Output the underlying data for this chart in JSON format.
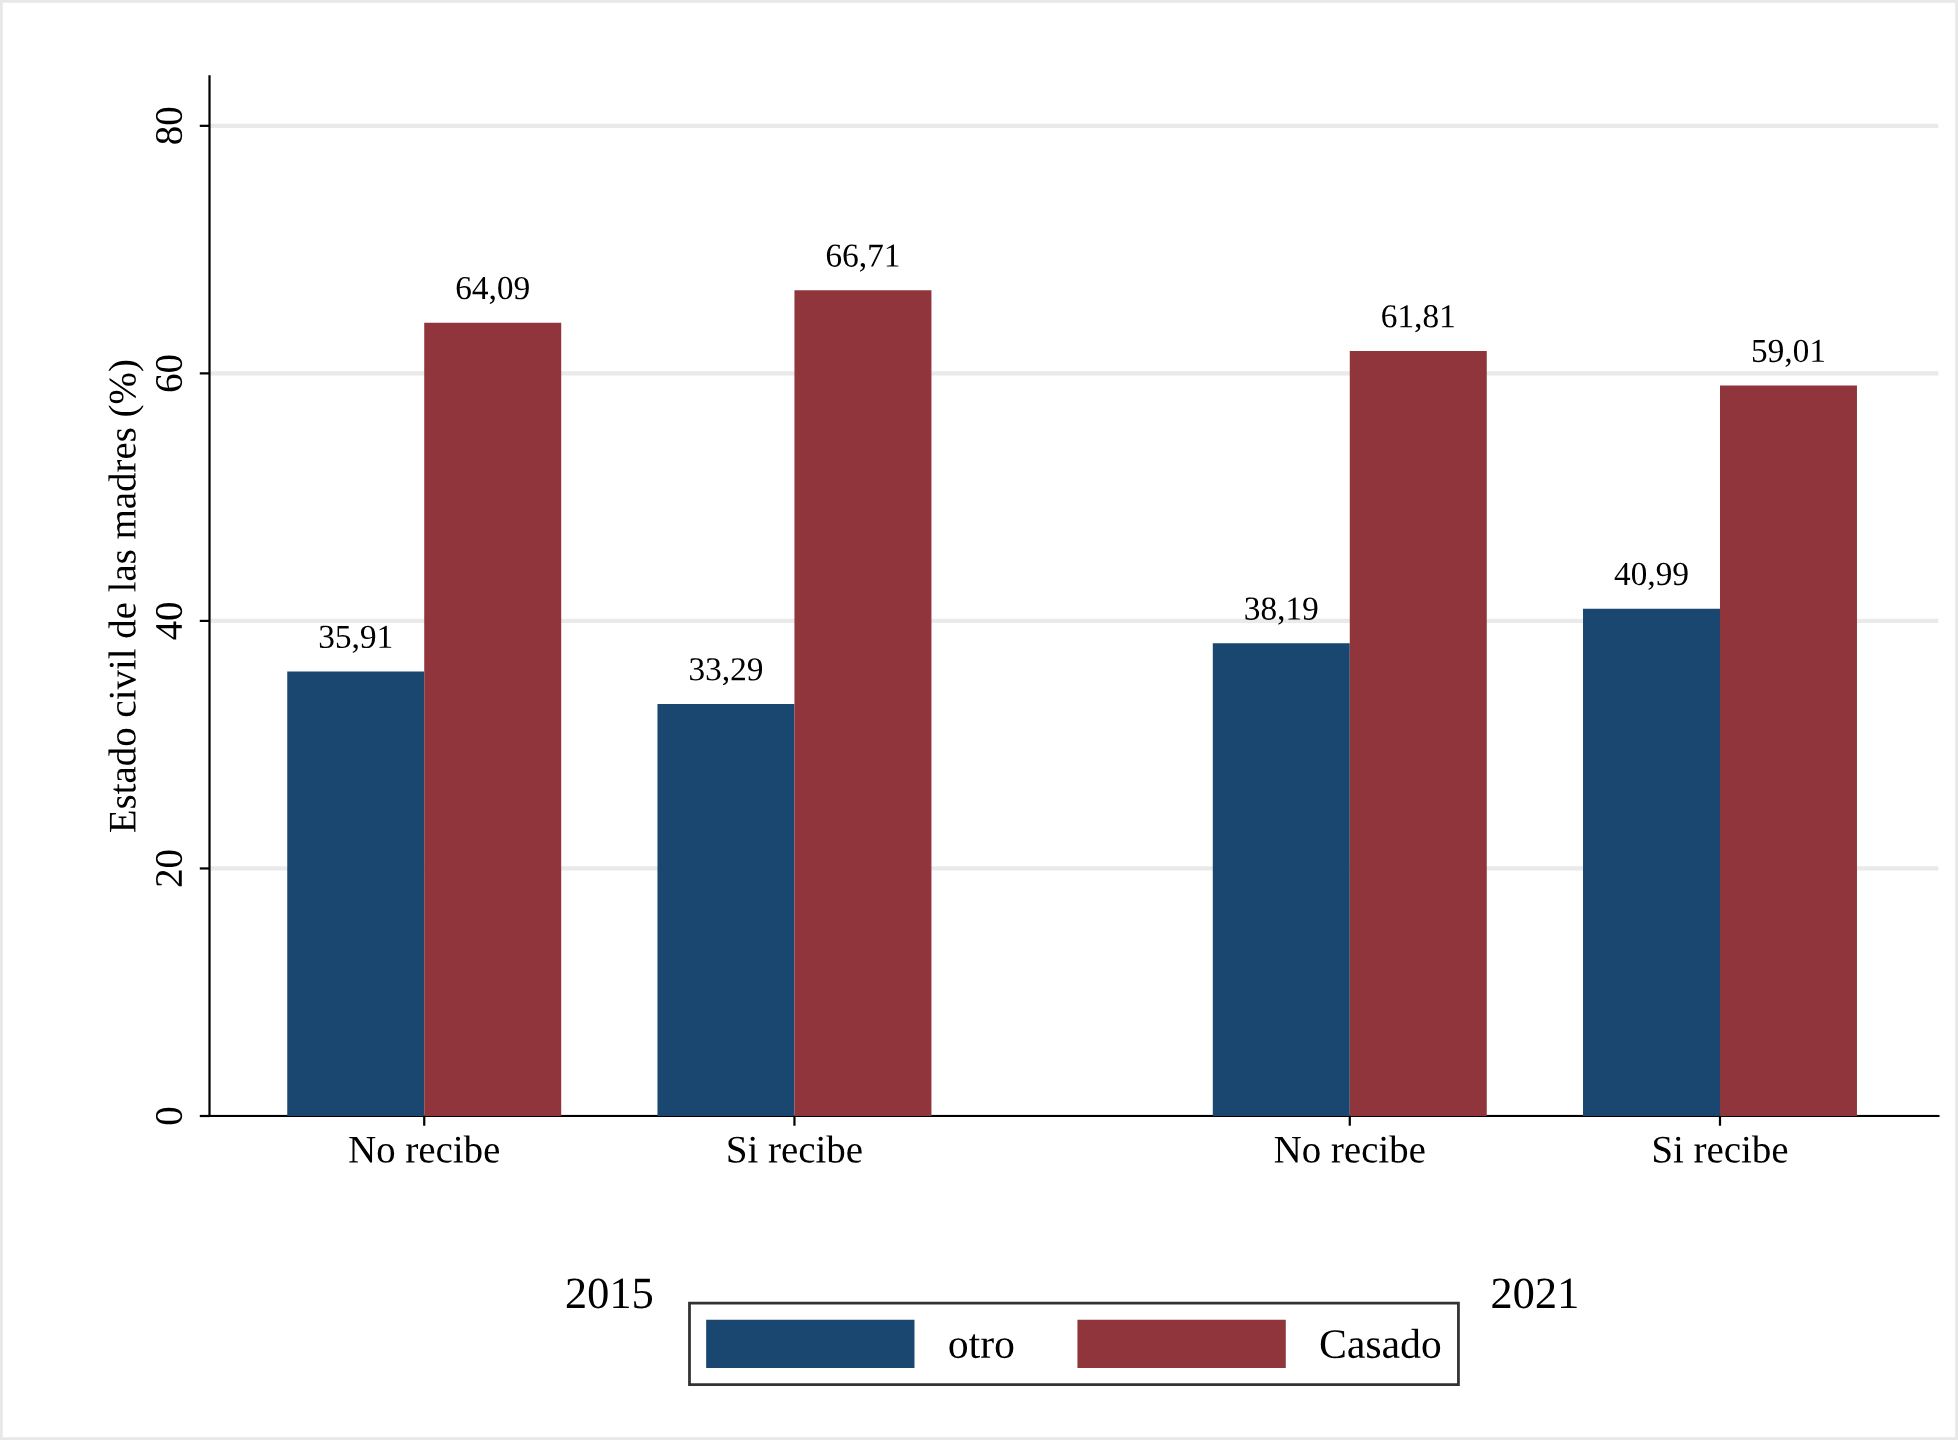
{
  "chart_data": {
    "type": "bar",
    "ylabel": "Estado civil de las madres (%)",
    "categories": [
      "No recibe",
      "Si recibe",
      "No recibe",
      "Si recibe"
    ],
    "annotations": [
      "2015",
      "2021"
    ],
    "series": [
      {
        "name": "otro",
        "color": "#1a476f",
        "values": [
          35.91,
          33.29,
          38.19,
          40.99
        ],
        "value_labels": [
          "35,91",
          "33,29",
          "38,19",
          "40,99"
        ]
      },
      {
        "name": "Casado",
        "color": "#90353b",
        "values": [
          64.09,
          66.71,
          61.81,
          59.01
        ],
        "value_labels": [
          "64,09",
          "66,71",
          "61,81",
          "59,01"
        ]
      }
    ],
    "ylim": [
      0,
      84
    ],
    "yticks": [
      0,
      20,
      40,
      60,
      80
    ],
    "grid": "y",
    "legend": "bottom"
  }
}
